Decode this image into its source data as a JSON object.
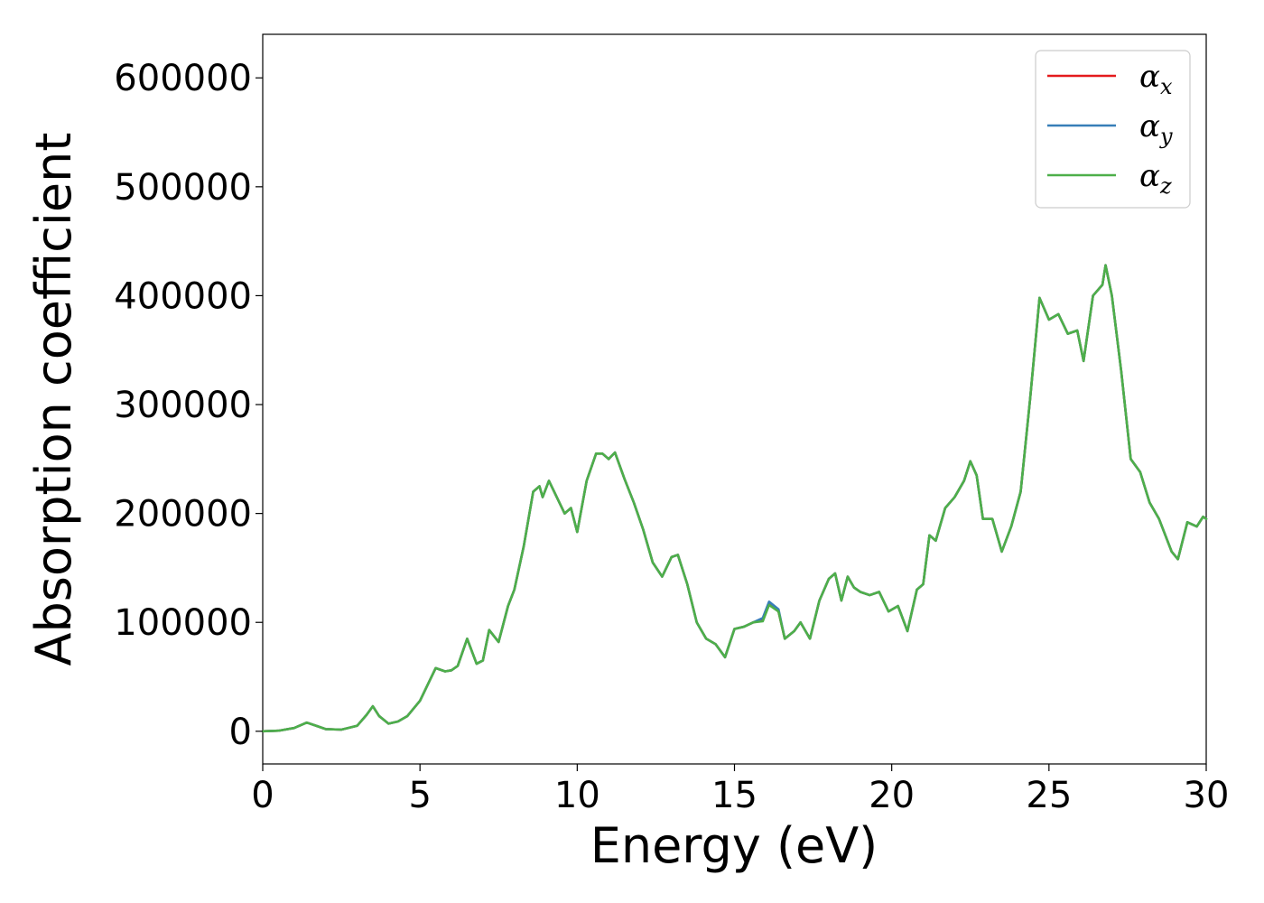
{
  "chart_data": {
    "type": "line",
    "title": "",
    "xlabel": "Energy (eV)",
    "ylabel": "Absorption coefficient",
    "xlim": [
      0,
      30
    ],
    "ylim": [
      -30000,
      640000
    ],
    "xticks": [
      0,
      5,
      10,
      15,
      20,
      25,
      30
    ],
    "xtick_labels": [
      "0",
      "5",
      "10",
      "15",
      "20",
      "25",
      "30"
    ],
    "yticks": [
      0,
      100000,
      200000,
      300000,
      400000,
      500000,
      600000
    ],
    "ytick_labels": [
      "0",
      "100000",
      "200000",
      "300000",
      "400000",
      "500000",
      "600000"
    ],
    "grid": false,
    "legend_position": "top-right",
    "x": [
      0,
      0.5,
      1.0,
      1.4,
      1.7,
      2.0,
      2.5,
      3.0,
      3.3,
      3.5,
      3.7,
      4.0,
      4.3,
      4.6,
      5.0,
      5.2,
      5.5,
      5.8,
      6.0,
      6.2,
      6.5,
      6.8,
      7.0,
      7.2,
      7.5,
      7.8,
      8.0,
      8.3,
      8.6,
      8.8,
      8.9,
      9.1,
      9.3,
      9.6,
      9.8,
      10.0,
      10.3,
      10.6,
      10.8,
      11.0,
      11.2,
      11.5,
      11.8,
      12.1,
      12.4,
      12.7,
      13.0,
      13.2,
      13.5,
      13.8,
      14.1,
      14.4,
      14.7,
      15.0,
      15.3,
      15.6,
      15.9,
      16.1,
      16.4,
      16.6,
      16.9,
      17.1,
      17.4,
      17.7,
      18.0,
      18.2,
      18.4,
      18.6,
      18.8,
      19.0,
      19.3,
      19.6,
      19.9,
      20.2,
      20.5,
      20.8,
      21.0,
      21.2,
      21.4,
      21.7,
      22.0,
      22.3,
      22.5,
      22.7,
      22.9,
      23.2,
      23.5,
      23.8,
      24.1,
      24.4,
      24.7,
      25.0,
      25.3,
      25.6,
      25.9,
      26.1,
      26.4,
      26.7,
      26.8,
      27.0,
      27.3,
      27.6,
      27.9,
      28.2,
      28.5,
      28.9,
      29.1,
      29.4,
      29.7,
      29.9,
      30.0
    ],
    "series": [
      {
        "name": "αx",
        "color": "#e41a1c",
        "values": [
          0,
          500,
          3000,
          8000,
          5000,
          2000,
          1500,
          5000,
          15000,
          23000,
          14000,
          7000,
          9000,
          14000,
          28000,
          40000,
          58000,
          55000,
          56000,
          60000,
          85000,
          62000,
          65000,
          93000,
          82000,
          115000,
          130000,
          170000,
          220000,
          225000,
          215000,
          230000,
          218000,
          200000,
          205000,
          183000,
          230000,
          255000,
          255000,
          250000,
          256000,
          232000,
          210000,
          185000,
          155000,
          142000,
          160000,
          162000,
          135000,
          100000,
          85000,
          80000,
          68000,
          94000,
          96000,
          100000,
          102000,
          117000,
          110000,
          85000,
          92000,
          100000,
          85000,
          120000,
          140000,
          145000,
          120000,
          142000,
          132000,
          128000,
          125000,
          128000,
          110000,
          115000,
          92000,
          130000,
          135000,
          180000,
          175000,
          205000,
          215000,
          230000,
          248000,
          235000,
          195000,
          195000,
          165000,
          188000,
          220000,
          305000,
          398000,
          378000,
          383000,
          365000,
          368000,
          340000,
          400000,
          410000,
          428000,
          400000,
          330000,
          250000,
          238000,
          210000,
          195000,
          165000,
          158000,
          192000,
          188000,
          197000,
          195000
        ]
      },
      {
        "name": "αy",
        "color": "#377eb8",
        "values": [
          0,
          500,
          3000,
          8000,
          5000,
          2000,
          1500,
          5000,
          15000,
          23000,
          14000,
          7000,
          9000,
          14000,
          28000,
          40000,
          58000,
          55000,
          56000,
          60000,
          85000,
          62000,
          65000,
          93000,
          82000,
          115000,
          130000,
          170000,
          220000,
          225000,
          215000,
          230000,
          218000,
          200000,
          205000,
          183000,
          230000,
          255000,
          255000,
          250000,
          256000,
          232000,
          210000,
          185000,
          155000,
          142000,
          160000,
          162000,
          135000,
          100000,
          85000,
          80000,
          68000,
          94000,
          96000,
          100000,
          104000,
          119000,
          112000,
          85000,
          92000,
          100000,
          85000,
          120000,
          140000,
          145000,
          120000,
          142000,
          132000,
          128000,
          125000,
          128000,
          110000,
          115000,
          92000,
          130000,
          135000,
          180000,
          175000,
          205000,
          215000,
          230000,
          248000,
          235000,
          195000,
          195000,
          165000,
          188000,
          220000,
          305000,
          398000,
          378000,
          383000,
          365000,
          368000,
          340000,
          400000,
          410000,
          428000,
          400000,
          330000,
          250000,
          238000,
          210000,
          195000,
          165000,
          158000,
          192000,
          188000,
          197000,
          195000
        ]
      },
      {
        "name": "αz",
        "color": "#4daf4a",
        "values": [
          0,
          500,
          3000,
          8000,
          5000,
          2000,
          1500,
          5000,
          15000,
          23000,
          14000,
          7000,
          9000,
          14000,
          28000,
          40000,
          58000,
          55000,
          56000,
          60000,
          85000,
          62000,
          65000,
          93000,
          82000,
          115000,
          130000,
          170000,
          220000,
          225000,
          215000,
          230000,
          218000,
          200000,
          205000,
          183000,
          230000,
          255000,
          255000,
          250000,
          256000,
          232000,
          210000,
          185000,
          155000,
          142000,
          160000,
          162000,
          135000,
          100000,
          85000,
          80000,
          68000,
          94000,
          96000,
          100000,
          101000,
          116000,
          110000,
          85000,
          92000,
          100000,
          85000,
          120000,
          140000,
          145000,
          120000,
          142000,
          132000,
          128000,
          125000,
          128000,
          110000,
          115000,
          92000,
          130000,
          135000,
          180000,
          175000,
          205000,
          215000,
          230000,
          248000,
          235000,
          195000,
          195000,
          165000,
          188000,
          220000,
          305000,
          398000,
          378000,
          383000,
          365000,
          368000,
          340000,
          400000,
          410000,
          428000,
          400000,
          330000,
          250000,
          238000,
          210000,
          195000,
          165000,
          158000,
          192000,
          188000,
          197000,
          195000
        ]
      }
    ],
    "legend": [
      {
        "symbol": "α",
        "subscript": "x",
        "color": "#e41a1c"
      },
      {
        "symbol": "α",
        "subscript": "y",
        "color": "#377eb8"
      },
      {
        "symbol": "α",
        "subscript": "z",
        "color": "#4daf4a"
      }
    ]
  }
}
